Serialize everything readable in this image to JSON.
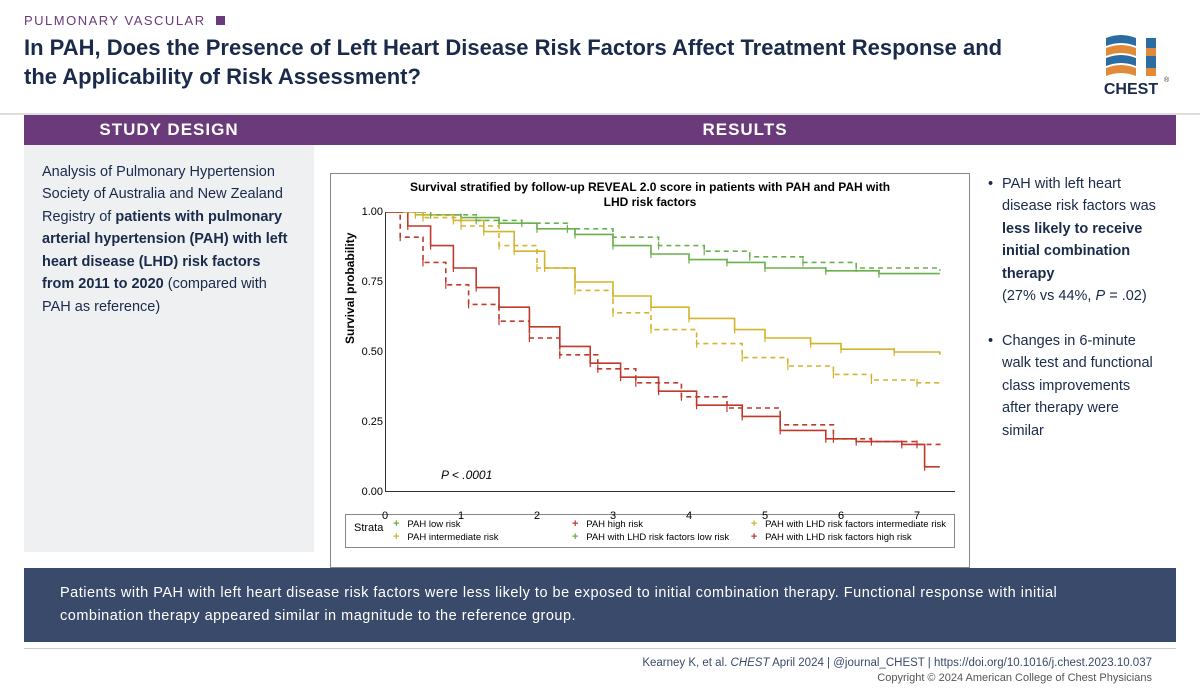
{
  "header": {
    "category": "PULMONARY VASCULAR",
    "title": "In PAH, Does the Presence of Left Heart Disease Risk Factors Affect Treatment Response and the Applicability of Risk Assessment?"
  },
  "logo": {
    "label": "CHEST",
    "top_color": "#2b6ca3",
    "accent_color": "#e08a3a"
  },
  "study_design": {
    "header": "STUDY DESIGN",
    "text_pre": "Analysis of Pulmonary Hypertension Society of Australia and New Zealand Registry of ",
    "text_bold": "patients with pulmonary arterial hypertension (PAH) with left heart disease (LHD) risk factors from 2011 to 2020",
    "text_post": " (compared with PAH as reference)"
  },
  "results": {
    "header": "RESULTS",
    "bullets": [
      {
        "pre": "PAH with left heart disease risk factors was ",
        "bold": "less likely to receive initial combination therapy",
        "post_line": "(27% vs 44%, ",
        "pstat_italic": "P",
        "pstat_rest": " = .02)"
      },
      {
        "pre": "Changes in 6-minute walk test and functional class improvements after therapy were similar",
        "bold": "",
        "post_line": "",
        "pstat_italic": "",
        "pstat_rest": ""
      }
    ]
  },
  "chart": {
    "title": "Survival stratified by follow-up REVEAL 2.0 score in patients with PAH and PAH with LHD risk factors",
    "ylabel": "Survival probability",
    "pvalue_label": "P",
    "pvalue_rest": " < .0001",
    "xlim": [
      0,
      7.5
    ],
    "ylim": [
      0,
      1.0
    ],
    "yticks": [
      0.0,
      0.25,
      0.5,
      0.75,
      1.0
    ],
    "ytick_labels": [
      "0.00",
      "0.25",
      "0.50",
      "0.75",
      "1.00"
    ],
    "xticks": [
      0,
      1,
      2,
      3,
      4,
      5,
      6,
      7
    ],
    "xtick_labels": [
      "0",
      "1",
      "2",
      "3",
      "4",
      "5",
      "6",
      "7"
    ],
    "legend_label": "Strata",
    "series": [
      {
        "name": "PAH low risk",
        "color": "#6ab04c",
        "style": "solid",
        "points": [
          [
            0,
            1.0
          ],
          [
            0.5,
            0.99
          ],
          [
            1.0,
            0.98
          ],
          [
            1.5,
            0.96
          ],
          [
            2.0,
            0.94
          ],
          [
            2.5,
            0.92
          ],
          [
            3.0,
            0.88
          ],
          [
            3.5,
            0.85
          ],
          [
            4.0,
            0.83
          ],
          [
            4.5,
            0.82
          ],
          [
            5.0,
            0.8
          ],
          [
            5.8,
            0.79
          ],
          [
            6.5,
            0.78
          ],
          [
            7.3,
            0.78
          ]
        ]
      },
      {
        "name": "PAH intermediate risk",
        "color": "#d4b32e",
        "style": "solid",
        "points": [
          [
            0,
            1.0
          ],
          [
            0.4,
            0.99
          ],
          [
            0.9,
            0.97
          ],
          [
            1.3,
            0.93
          ],
          [
            1.7,
            0.86
          ],
          [
            2.1,
            0.8
          ],
          [
            2.5,
            0.75
          ],
          [
            3.0,
            0.7
          ],
          [
            3.5,
            0.66
          ],
          [
            4.0,
            0.62
          ],
          [
            4.6,
            0.58
          ],
          [
            5.0,
            0.55
          ],
          [
            5.6,
            0.53
          ],
          [
            6.0,
            0.51
          ],
          [
            6.7,
            0.5
          ],
          [
            7.3,
            0.49
          ]
        ]
      },
      {
        "name": "PAH high risk",
        "color": "#c0392b",
        "style": "solid",
        "points": [
          [
            0,
            1.0
          ],
          [
            0.3,
            0.95
          ],
          [
            0.6,
            0.88
          ],
          [
            0.9,
            0.8
          ],
          [
            1.2,
            0.73
          ],
          [
            1.5,
            0.66
          ],
          [
            1.9,
            0.59
          ],
          [
            2.3,
            0.52
          ],
          [
            2.7,
            0.46
          ],
          [
            3.1,
            0.41
          ],
          [
            3.6,
            0.36
          ],
          [
            4.1,
            0.31
          ],
          [
            4.7,
            0.27
          ],
          [
            5.2,
            0.22
          ],
          [
            5.8,
            0.19
          ],
          [
            6.2,
            0.18
          ],
          [
            6.8,
            0.17
          ],
          [
            7.1,
            0.09
          ],
          [
            7.3,
            0.09
          ]
        ]
      },
      {
        "name": "PAH with LHD risk factors low risk",
        "color": "#6ab04c",
        "style": "dash",
        "points": [
          [
            0,
            1.0
          ],
          [
            0.6,
            0.99
          ],
          [
            1.2,
            0.97
          ],
          [
            1.8,
            0.96
          ],
          [
            2.4,
            0.94
          ],
          [
            3.0,
            0.91
          ],
          [
            3.6,
            0.88
          ],
          [
            4.2,
            0.86
          ],
          [
            4.8,
            0.84
          ],
          [
            5.5,
            0.82
          ],
          [
            6.2,
            0.8
          ],
          [
            7.3,
            0.79
          ]
        ]
      },
      {
        "name": "PAH with LHD risk factors intermediate risk",
        "color": "#d4b32e",
        "style": "dash",
        "points": [
          [
            0,
            1.0
          ],
          [
            0.5,
            0.98
          ],
          [
            1.0,
            0.95
          ],
          [
            1.5,
            0.88
          ],
          [
            2.0,
            0.8
          ],
          [
            2.5,
            0.72
          ],
          [
            3.0,
            0.64
          ],
          [
            3.5,
            0.58
          ],
          [
            4.1,
            0.53
          ],
          [
            4.7,
            0.48
          ],
          [
            5.3,
            0.45
          ],
          [
            5.9,
            0.42
          ],
          [
            6.4,
            0.4
          ],
          [
            7.0,
            0.39
          ],
          [
            7.3,
            0.38
          ]
        ]
      },
      {
        "name": "PAH with LHD risk factors high risk",
        "color": "#c0392b",
        "style": "dash",
        "points": [
          [
            0,
            1.0
          ],
          [
            0.2,
            0.91
          ],
          [
            0.5,
            0.82
          ],
          [
            0.8,
            0.74
          ],
          [
            1.1,
            0.67
          ],
          [
            1.5,
            0.61
          ],
          [
            1.9,
            0.55
          ],
          [
            2.3,
            0.49
          ],
          [
            2.8,
            0.44
          ],
          [
            3.3,
            0.39
          ],
          [
            3.9,
            0.34
          ],
          [
            4.5,
            0.3
          ],
          [
            5.2,
            0.24
          ],
          [
            5.9,
            0.19
          ],
          [
            6.4,
            0.18
          ],
          [
            7.0,
            0.17
          ],
          [
            7.3,
            0.16
          ]
        ]
      }
    ],
    "legend_order": [
      0,
      2,
      4,
      1,
      3,
      5
    ]
  },
  "conclusion": "Patients with PAH with left heart disease risk factors were less likely to be exposed to initial combination therapy. Functional response with initial combination therapy appeared similar in magnitude to the reference group.",
  "footer": {
    "citation_pre": "Kearney K, et al. ",
    "citation_em": "CHEST",
    "citation_mid": " April 2024  |  @journal_CHEST  |  https://doi.org/10.1016/j.chest.2023.10.037",
    "copyright": "Copyright © 2024 American College of Chest Physicians"
  },
  "colors": {
    "purple": "#6b3a7a",
    "navy": "#1a2a4a",
    "slate": "#3a4a6a",
    "light_panel": "#eef0f2"
  }
}
